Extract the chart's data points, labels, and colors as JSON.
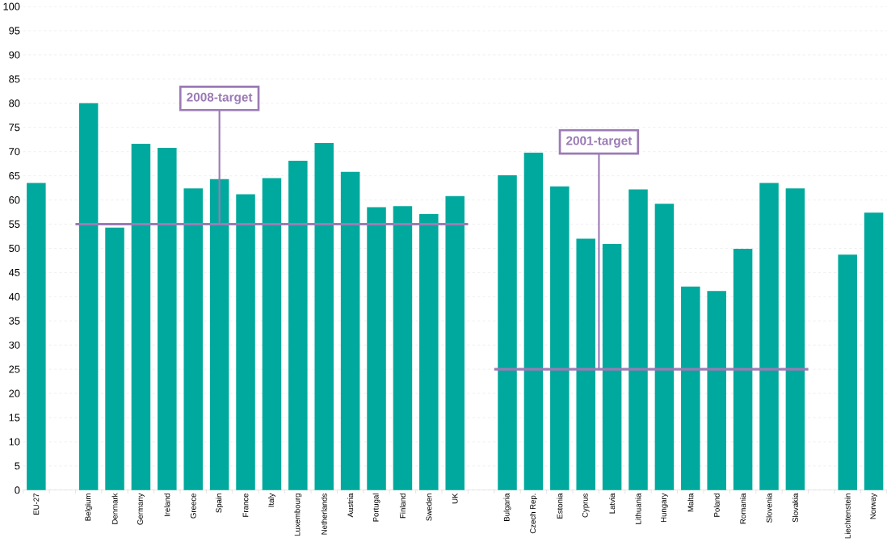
{
  "chart_data": {
    "type": "bar",
    "categories": [
      "EU-27",
      null,
      "Belgium",
      "Denmark",
      "Germany",
      "Ireland",
      "Greece",
      "Spain",
      "France",
      "Italy",
      "Luxembourg",
      "Netherlands",
      "Austria",
      "Portugal",
      "Finland",
      "Sweden",
      "UK",
      null,
      "Bulgaria",
      "Czech Rep.",
      "Estonia",
      "Cyprus",
      "Latvia",
      "Lithuania",
      "Hungary",
      "Malta",
      "Poland",
      "Romania",
      "Slovenia",
      "Slovakia",
      null,
      "Liechtenstein",
      "Norway"
    ],
    "values": [
      63.5,
      null,
      80,
      54.3,
      71.6,
      70.8,
      62.4,
      64.3,
      61.2,
      64.5,
      68.1,
      71.8,
      65.8,
      58.5,
      58.7,
      57.1,
      60.8,
      null,
      65.1,
      69.8,
      62.8,
      52,
      50.9,
      62.2,
      59.2,
      42.1,
      41.2,
      49.9,
      63.5,
      62.4,
      null,
      48.7,
      57.4
    ],
    "color": "#00a99d",
    "ylim": [
      0,
      100
    ],
    "yticks": [
      0,
      5,
      10,
      15,
      20,
      25,
      30,
      35,
      40,
      45,
      50,
      55,
      60,
      65,
      70,
      75,
      80,
      85,
      90,
      95,
      100
    ],
    "grid": "y",
    "ref_lines": [
      {
        "axis": "y",
        "value": 55,
        "label": "2008-target",
        "color": "#9b7bb5"
      },
      {
        "axis": "y",
        "value": 25,
        "label": "2001-target",
        "color": "#9b7bb5"
      }
    ]
  }
}
